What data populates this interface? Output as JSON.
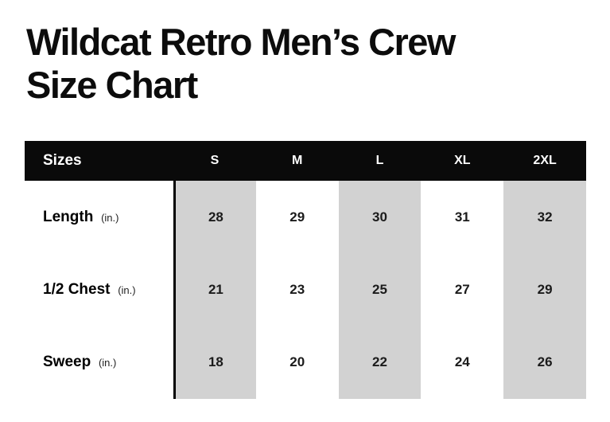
{
  "title": {
    "line1": "Wildcat Retro Men’s Crew",
    "line2": "Size Chart"
  },
  "table": {
    "header_label": "Sizes",
    "sizes": [
      "S",
      "M",
      "L",
      "XL",
      "2XL"
    ],
    "rows": [
      {
        "label": "Length",
        "unit": "(in.)",
        "values": [
          "28",
          "29",
          "30",
          "31",
          "32"
        ]
      },
      {
        "label": "1/2 Chest",
        "unit": "(in.)",
        "values": [
          "21",
          "23",
          "25",
          "27",
          "29"
        ]
      },
      {
        "label": "Sweep",
        "unit": "(in.)",
        "values": [
          "18",
          "20",
          "22",
          "24",
          "26"
        ]
      }
    ],
    "shaded_size_columns": [
      "S",
      "L",
      "2XL"
    ],
    "colors": {
      "header_bg": "#0a0a0a",
      "header_text": "#ffffff",
      "column_shade": "#d2d2d2",
      "divider_line": "#000000",
      "title_text": "#0c0c0c"
    }
  },
  "chart_data": {
    "type": "table",
    "title": "Wildcat Retro Men’s Crew Size Chart",
    "columns": [
      "Sizes",
      "S",
      "M",
      "L",
      "XL",
      "2XL"
    ],
    "rows": [
      [
        "Length (in.)",
        28,
        29,
        30,
        31,
        32
      ],
      [
        "1/2 Chest (in.)",
        21,
        23,
        25,
        27,
        29
      ],
      [
        "Sweep (in.)",
        18,
        20,
        22,
        24,
        26
      ]
    ],
    "layout": {
      "shaded_columns": [
        "S",
        "L",
        "2XL"
      ],
      "header_style": "black-bar-white-text",
      "divider": "vertical black line at left edge of S column"
    }
  }
}
